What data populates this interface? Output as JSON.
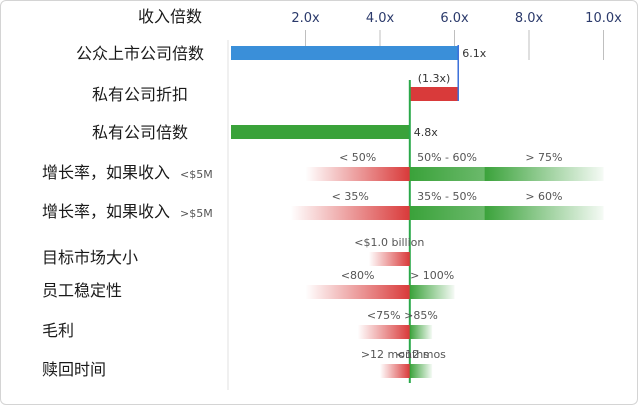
{
  "chart_data": {
    "type": "bar",
    "header": "收入倍数",
    "x_ticks": [
      "2.0x",
      "4.0x",
      "6.0x",
      "8.0x",
      "10.0x"
    ],
    "x_tick_values": [
      2,
      4,
      6,
      8,
      10
    ],
    "xlim": [
      0,
      10
    ],
    "reference_line": 4.8,
    "bars": [
      {
        "category": "公众上市公司倍数",
        "start": 0,
        "end": 6.1,
        "label": "6.1x",
        "color": "#3a8fd9"
      },
      {
        "category": "私有公司折扣",
        "start": 4.8,
        "end": 6.1,
        "label": "(1.3x)",
        "color": "#d93a3a"
      },
      {
        "category": "私有公司倍数",
        "start": 0,
        "end": 4.8,
        "label": "4.8x",
        "color": "#3aa23a"
      }
    ],
    "factors": [
      {
        "category": "增长率，如果收入",
        "suffix": "<$5M",
        "segments": [
          {
            "label": "< 50%",
            "from": 2.0,
            "to": 4.8,
            "color": "#d93a3a"
          },
          {
            "label": "50% - 60%",
            "from": 4.8,
            "to": 6.8,
            "color": "#3aa23a"
          },
          {
            "label": "> 75%",
            "from": 6.8,
            "to": 10.0,
            "color": "#3aa23a"
          }
        ]
      },
      {
        "category": "增长率，如果收入",
        "suffix": ">$5M",
        "segments": [
          {
            "label": "< 35%",
            "from": 1.6,
            "to": 4.8,
            "color": "#d93a3a"
          },
          {
            "label": "35% - 50%",
            "from": 4.8,
            "to": 6.8,
            "color": "#3aa23a"
          },
          {
            "label": "> 60%",
            "from": 6.8,
            "to": 10.0,
            "color": "#3aa23a"
          }
        ]
      },
      {
        "category": "目标市场大小",
        "suffix": "",
        "segments": [
          {
            "label": "<$1.0 billion",
            "from": 3.7,
            "to": 4.8,
            "color": "#d93a3a"
          }
        ]
      },
      {
        "category": "员工稳定性",
        "suffix": "",
        "segments": [
          {
            "label": "<80%",
            "from": 2.0,
            "to": 4.8,
            "color": "#d93a3a"
          },
          {
            "label": "> 100%",
            "from": 4.8,
            "to": 6.0,
            "color": "#3aa23a"
          }
        ]
      },
      {
        "category": "毛利",
        "suffix": "",
        "segments": [
          {
            "label": "<75%",
            "from": 3.4,
            "to": 4.8,
            "color": "#d93a3a"
          },
          {
            "label": ">85%",
            "from": 4.8,
            "to": 5.4,
            "color": "#3aa23a"
          }
        ]
      },
      {
        "category": "赎回时间",
        "suffix": "",
        "segments": [
          {
            "label": ">12 months",
            "from": 4.0,
            "to": 4.8,
            "color": "#d93a3a"
          },
          {
            "label": "<12 mos",
            "from": 4.8,
            "to": 5.4,
            "color": "#3aa23a"
          }
        ]
      }
    ]
  }
}
